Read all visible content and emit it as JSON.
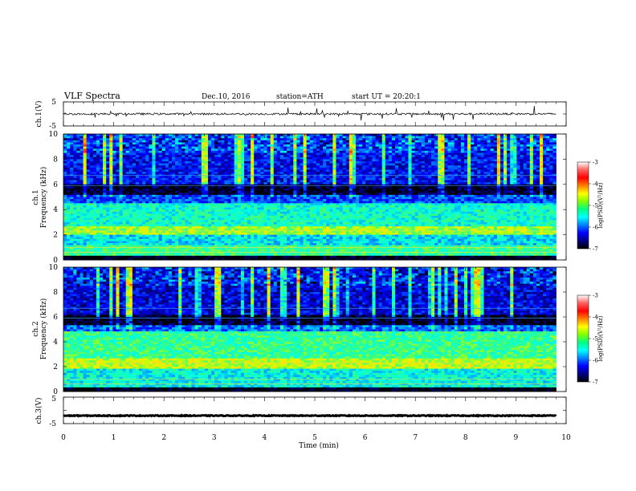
{
  "header": {
    "title": "VLF Spectra",
    "date": "Dec.10, 2016",
    "station": "station=ATH",
    "start_ut": "start UT = 20:20:1"
  },
  "panels": {
    "ch1_wave": {
      "ylabel": "ch.1(V)",
      "ytick_top": "5",
      "ytick_bottom": "-5"
    },
    "ch1_spec": {
      "ylabel_line1": "ch.1",
      "ylabel_line2": "Frequency (kHz)"
    },
    "ch2_spec": {
      "ylabel_line1": "ch.2",
      "ylabel_line2": "Frequency (kHz)"
    },
    "ch3_wave": {
      "ylabel": "ch.3(V)",
      "ytick_top": "5",
      "ytick_bottom": "-5"
    }
  },
  "colorbar": {
    "label": "log(PSD)(V²/Hz)",
    "ticks": [
      "-3",
      "-4",
      "-5",
      "-6",
      "-7"
    ],
    "colors": [
      "#ffffff",
      "#ff6060",
      "#ff0000",
      "#ff8000",
      "#ffff00",
      "#80ff00",
      "#00ff80",
      "#00ffff",
      "#0080ff",
      "#0000ff",
      "#000080",
      "#000000"
    ]
  },
  "xaxis": {
    "label": "Time (min)",
    "ticks": [
      "0",
      "1",
      "2",
      "3",
      "4",
      "5",
      "6",
      "7",
      "8",
      "9",
      "10"
    ]
  },
  "chart_data": [
    {
      "type": "line",
      "panel": "ch.1 waveform",
      "ylabel": "ch.1(V)",
      "ylim": [
        -5,
        5
      ],
      "xlim": [
        0,
        10
      ],
      "xlabel": "Time (min)",
      "data_end_min": 9.8,
      "baseline_V": 0,
      "noise_amplitude_V": 0.8
    },
    {
      "type": "heatmap",
      "panel": "ch.1 spectrogram",
      "ylabel": "Frequency (kHz)",
      "ylim": [
        0,
        10
      ],
      "yticks": [
        "0",
        "2",
        "4",
        "6",
        "8",
        "10"
      ],
      "xlim": [
        0,
        10
      ],
      "data_end_min": 9.8,
      "value_label": "log(PSD)(V²/Hz)",
      "value_range": [
        -7,
        -3
      ],
      "bands_kHz": [
        {
          "f_low": 0,
          "f_high": 0.3,
          "log_psd": -7
        },
        {
          "f_low": 0.3,
          "f_high": 1.2,
          "log_psd": -5.2
        },
        {
          "f_low": 1.2,
          "f_high": 2.0,
          "log_psd": -5.6
        },
        {
          "f_low": 2.0,
          "f_high": 2.7,
          "log_psd": -4.8
        },
        {
          "f_low": 2.7,
          "f_high": 4.5,
          "log_psd": -5.4
        },
        {
          "f_low": 4.5,
          "f_high": 5.2,
          "log_psd": -6.1
        },
        {
          "f_low": 5.2,
          "f_high": 6.0,
          "log_psd": -6.9
        },
        {
          "f_low": 6.0,
          "f_high": 10.0,
          "log_psd": -6.3
        }
      ]
    },
    {
      "type": "heatmap",
      "panel": "ch.2 spectrogram",
      "ylabel": "Frequency (kHz)",
      "ylim": [
        0,
        10
      ],
      "yticks": [
        "0",
        "2",
        "4",
        "6",
        "8",
        "10"
      ],
      "xlim": [
        0,
        10
      ],
      "data_end_min": 9.8,
      "value_label": "log(PSD)(V²/Hz)",
      "value_range": [
        -7,
        -3
      ],
      "bands_kHz": [
        {
          "f_low": 0,
          "f_high": 0.3,
          "log_psd": -7
        },
        {
          "f_low": 0.3,
          "f_high": 1.8,
          "log_psd": -5.5
        },
        {
          "f_low": 1.8,
          "f_high": 2.7,
          "log_psd": -4.7
        },
        {
          "f_low": 2.7,
          "f_high": 4.8,
          "log_psd": -5.2
        },
        {
          "f_low": 4.8,
          "f_high": 5.3,
          "log_psd": -6.0
        },
        {
          "f_low": 5.3,
          "f_high": 6.2,
          "log_psd": -6.9
        },
        {
          "f_low": 6.2,
          "f_high": 10.0,
          "log_psd": -6.4
        }
      ]
    },
    {
      "type": "line",
      "panel": "ch.3 waveform",
      "ylabel": "ch.3(V)",
      "ylim": [
        -5,
        5
      ],
      "xlim": [
        0,
        10
      ],
      "xlabel": "Time (min)",
      "data_end_min": 9.8,
      "baseline_V": -2,
      "noise_amplitude_V": 0.3
    }
  ]
}
